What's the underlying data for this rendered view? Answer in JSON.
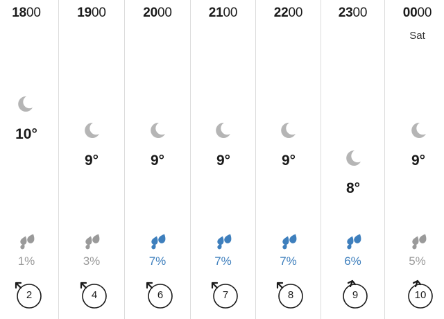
{
  "forecast": {
    "hours": [
      {
        "hour": "18",
        "minutes": "00",
        "day": "",
        "temp": "10°",
        "rain_chance": "1%",
        "rain_level": "low",
        "wind_speed": "2",
        "wind_dir": "nw"
      },
      {
        "hour": "19",
        "minutes": "00",
        "day": "",
        "temp": "9°",
        "rain_chance": "3%",
        "rain_level": "low",
        "wind_speed": "4",
        "wind_dir": "nw"
      },
      {
        "hour": "20",
        "minutes": "00",
        "day": "",
        "temp": "9°",
        "rain_chance": "7%",
        "rain_level": "high",
        "wind_speed": "6",
        "wind_dir": "nw"
      },
      {
        "hour": "21",
        "minutes": "00",
        "day": "",
        "temp": "9°",
        "rain_chance": "7%",
        "rain_level": "high",
        "wind_speed": "7",
        "wind_dir": "nw"
      },
      {
        "hour": "22",
        "minutes": "00",
        "day": "",
        "temp": "9°",
        "rain_chance": "7%",
        "rain_level": "high",
        "wind_speed": "8",
        "wind_dir": "nw"
      },
      {
        "hour": "23",
        "minutes": "00",
        "day": "",
        "temp": "8°",
        "rain_chance": "6%",
        "rain_level": "high",
        "wind_speed": "9",
        "wind_dir": "nnw"
      },
      {
        "hour": "00",
        "minutes": "00",
        "day": "Sat",
        "temp": "9°",
        "rain_chance": "5%",
        "rain_level": "low",
        "wind_speed": "10",
        "wind_dir": "nnw"
      }
    ]
  },
  "icons": {
    "weather": "moon-icon",
    "precipitation": "raindrops-icon",
    "wind": "wind-direction-icon"
  },
  "colors": {
    "rain_low": "#9a9a9a",
    "rain_high": "#3e7fbd",
    "moon": "#b5b5b5",
    "divider": "#dcdcdc"
  }
}
